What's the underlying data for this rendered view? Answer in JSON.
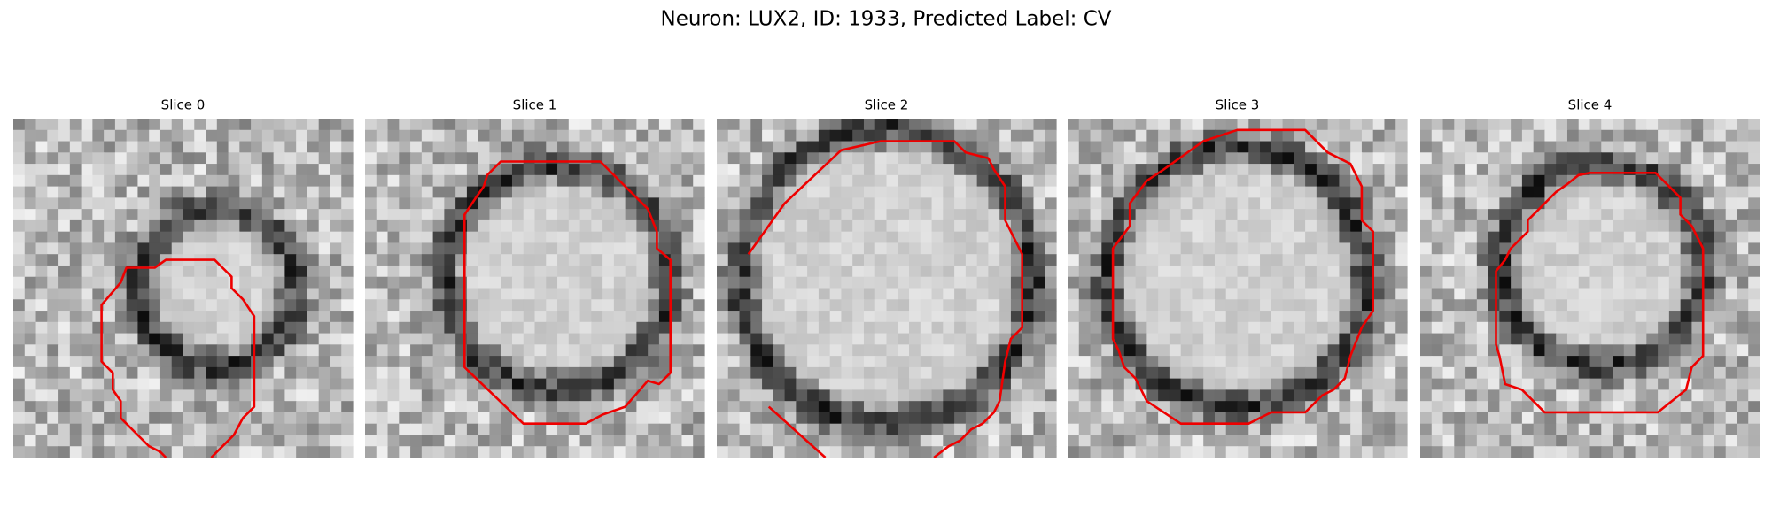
{
  "title": "Neuron: LUX2, ID: 1933, Predicted Label: CV",
  "panels": [
    {
      "title": "Slice 0"
    },
    {
      "title": "Slice 1"
    },
    {
      "title": "Slice 2"
    },
    {
      "title": "Slice 3"
    },
    {
      "title": "Slice 4"
    }
  ]
}
